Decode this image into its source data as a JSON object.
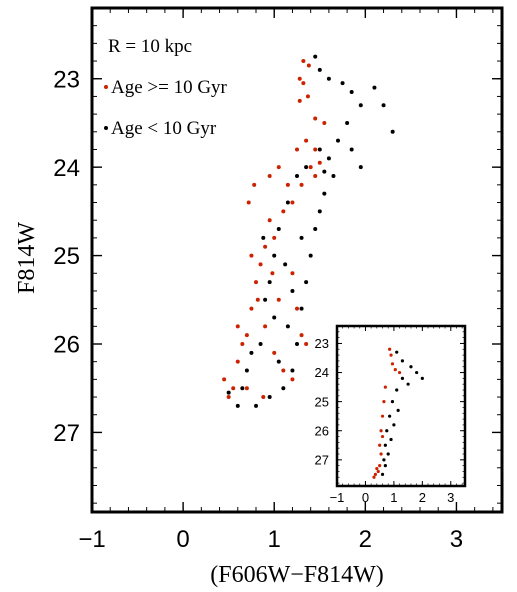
{
  "chart_data": [
    {
      "type": "scatter",
      "annotation": "R = 10 kpc",
      "xlabel": "(F606W−F814W)",
      "ylabel": "F814W",
      "xlim": [
        -1,
        3.5
      ],
      "ylim": [
        27.9,
        22.2
      ],
      "y_inverted": true,
      "xticks": [
        {
          "value": -1,
          "label": "−1"
        },
        {
          "value": 0,
          "label": "0"
        },
        {
          "value": 1,
          "label": "1"
        },
        {
          "value": 2,
          "label": "2"
        },
        {
          "value": 3,
          "label": "3"
        }
      ],
      "yticks": [
        {
          "value": 23,
          "label": "23"
        },
        {
          "value": 24,
          "label": "24"
        },
        {
          "value": 25,
          "label": "25"
        },
        {
          "value": 26,
          "label": "26"
        },
        {
          "value": 27,
          "label": "27"
        }
      ],
      "grid": false,
      "legend_position": "top-left",
      "series": [
        {
          "name": "Age >= 10 Gyr",
          "color": "#cc2200",
          "points": [
            [
              1.32,
              22.8
            ],
            [
              1.38,
              22.85
            ],
            [
              1.28,
              23.0
            ],
            [
              1.32,
              23.05
            ],
            [
              1.28,
              23.25
            ],
            [
              1.37,
              23.2
            ],
            [
              1.45,
              23.45
            ],
            [
              1.55,
              23.5
            ],
            [
              1.35,
              23.7
            ],
            [
              1.45,
              23.8
            ],
            [
              1.4,
              24.0
            ],
            [
              1.5,
              23.95
            ],
            [
              1.45,
              24.1
            ],
            [
              1.3,
              24.2
            ],
            [
              1.25,
              23.8
            ],
            [
              1.2,
              24.4
            ],
            [
              1.1,
              24.5
            ],
            [
              1.0,
              24.8
            ],
            [
              0.95,
              24.6
            ],
            [
              0.9,
              24.9
            ],
            [
              0.85,
              25.1
            ],
            [
              0.8,
              25.3
            ],
            [
              0.75,
              25.6
            ],
            [
              0.7,
              25.9
            ],
            [
              0.6,
              26.2
            ],
            [
              0.55,
              26.5
            ],
            [
              0.5,
              26.6
            ],
            [
              0.45,
              26.4
            ],
            [
              0.65,
              26.0
            ],
            [
              0.95,
              24.1
            ],
            [
              1.05,
              24.0
            ],
            [
              1.15,
              24.2
            ],
            [
              0.75,
              25.0
            ],
            [
              0.82,
              25.5
            ],
            [
              0.9,
              25.8
            ],
            [
              1.0,
              26.1
            ],
            [
              1.1,
              26.3
            ],
            [
              1.2,
              26.4
            ],
            [
              0.6,
              25.8
            ],
            [
              0.7,
              26.5
            ],
            [
              0.88,
              26.6
            ],
            [
              1.05,
              25.5
            ],
            [
              1.2,
              25.2
            ],
            [
              1.25,
              25.6
            ],
            [
              0.98,
              25.2
            ],
            [
              0.72,
              24.4
            ],
            [
              0.78,
              24.2
            ],
            [
              1.35,
              26.0
            ],
            [
              1.3,
              25.9
            ]
          ],
          "inset_points": [
            [
              0.85,
              23.2
            ],
            [
              0.9,
              23.4
            ],
            [
              0.95,
              23.7
            ],
            [
              1.05,
              23.9
            ],
            [
              0.7,
              24.5
            ],
            [
              0.65,
              25.0
            ],
            [
              0.6,
              25.5
            ],
            [
              0.55,
              26.0
            ],
            [
              0.5,
              26.5
            ],
            [
              0.4,
              27.3
            ],
            [
              0.35,
              27.5
            ],
            [
              0.3,
              27.6
            ],
            [
              0.45,
              27.4
            ],
            [
              0.5,
              27.2
            ],
            [
              0.55,
              26.8
            ],
            [
              0.6,
              26.2
            ],
            [
              1.2,
              24.0
            ]
          ]
        },
        {
          "name": "Age < 10 Gyr",
          "color": "#000000",
          "points": [
            [
              1.45,
              22.75
            ],
            [
              1.5,
              22.9
            ],
            [
              1.6,
              23.0
            ],
            [
              1.75,
              23.05
            ],
            [
              1.85,
              23.15
            ],
            [
              2.1,
              23.1
            ],
            [
              2.2,
              23.3
            ],
            [
              2.3,
              23.6
            ],
            [
              1.95,
              23.3
            ],
            [
              1.8,
              23.5
            ],
            [
              1.7,
              23.7
            ],
            [
              1.6,
              23.9
            ],
            [
              1.65,
              24.1
            ],
            [
              1.55,
              24.3
            ],
            [
              1.5,
              24.5
            ],
            [
              1.45,
              24.7
            ],
            [
              1.4,
              25.0
            ],
            [
              1.35,
              25.3
            ],
            [
              1.3,
              25.6
            ],
            [
              1.25,
              26.0
            ],
            [
              1.2,
              26.3
            ],
            [
              1.1,
              26.5
            ],
            [
              0.95,
              26.6
            ],
            [
              0.8,
              26.7
            ],
            [
              0.6,
              26.7
            ],
            [
              0.5,
              26.55
            ],
            [
              0.7,
              26.3
            ],
            [
              0.85,
              26.0
            ],
            [
              0.9,
              25.5
            ],
            [
              1.0,
              25.0
            ],
            [
              1.05,
              24.7
            ],
            [
              1.15,
              24.4
            ],
            [
              1.25,
              24.1
            ],
            [
              1.35,
              24.0
            ],
            [
              1.55,
              24.05
            ],
            [
              1.5,
              23.8
            ],
            [
              1.85,
              23.8
            ],
            [
              1.95,
              24.0
            ],
            [
              1.15,
              25.8
            ],
            [
              1.2,
              25.4
            ],
            [
              0.95,
              25.3
            ],
            [
              0.75,
              26.1
            ],
            [
              0.65,
              26.5
            ],
            [
              1.05,
              26.2
            ],
            [
              1.0,
              25.7
            ],
            [
              0.88,
              24.8
            ],
            [
              1.12,
              25.1
            ],
            [
              1.3,
              24.8
            ]
          ],
          "inset_points": [
            [
              1.1,
              23.3
            ],
            [
              1.3,
              23.6
            ],
            [
              1.6,
              23.8
            ],
            [
              1.8,
              24.0
            ],
            [
              2.0,
              24.2
            ],
            [
              1.3,
              24.2
            ],
            [
              1.1,
              24.6
            ],
            [
              0.95,
              25.0
            ],
            [
              0.85,
              25.5
            ],
            [
              0.75,
              26.0
            ],
            [
              0.7,
              26.5
            ],
            [
              0.65,
              27.0
            ],
            [
              0.6,
              27.5
            ],
            [
              0.7,
              27.2
            ],
            [
              0.8,
              26.8
            ],
            [
              0.9,
              26.3
            ],
            [
              1.0,
              25.8
            ],
            [
              1.15,
              25.3
            ],
            [
              1.5,
              24.4
            ]
          ]
        }
      ]
    },
    {
      "type": "scatter",
      "xlim": [
        -1,
        3.5
      ],
      "ylim": [
        27.9,
        22.4
      ],
      "y_inverted": true,
      "xticks": [
        {
          "value": -1,
          "label": "−1"
        },
        {
          "value": 0,
          "label": "0"
        },
        {
          "value": 1,
          "label": "1"
        },
        {
          "value": 2,
          "label": "2"
        },
        {
          "value": 3,
          "label": "3"
        }
      ],
      "yticks": [
        {
          "value": 23,
          "label": "23"
        },
        {
          "value": 24,
          "label": "24"
        },
        {
          "value": 25,
          "label": "25"
        },
        {
          "value": 26,
          "label": "26"
        },
        {
          "value": 27,
          "label": "27"
        }
      ],
      "grid": false
    }
  ]
}
